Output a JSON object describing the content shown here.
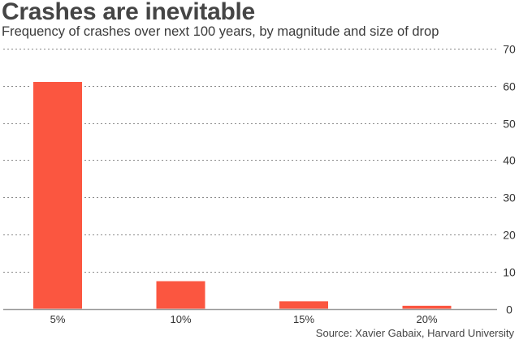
{
  "colors": {
    "bar": "#fb5640",
    "grid": "#8a8a8a",
    "baseline": "#9a9a9a",
    "text": "#333333"
  },
  "chart_data": {
    "type": "bar",
    "title": "Crashes are inevitable",
    "subtitle": "Frequency of crashes over next 100 years, by magnitude and size of drop",
    "source": "Source: Xavier Gabaix, Harvard University",
    "categories": [
      "5%",
      "10%",
      "15%",
      "20%"
    ],
    "values": [
      61,
      7.5,
      2.1,
      0.9
    ],
    "xlabel": "",
    "ylabel": "",
    "ylim": [
      0,
      70
    ],
    "yticks": [
      0,
      10,
      20,
      30,
      40,
      50,
      60,
      70
    ],
    "ytick_labels": [
      "0",
      "10",
      "20",
      "30",
      "40",
      "50",
      "60",
      "70"
    ],
    "y_axis_position": "right",
    "grid": true,
    "grid_style": "dotted",
    "legend": "none"
  }
}
